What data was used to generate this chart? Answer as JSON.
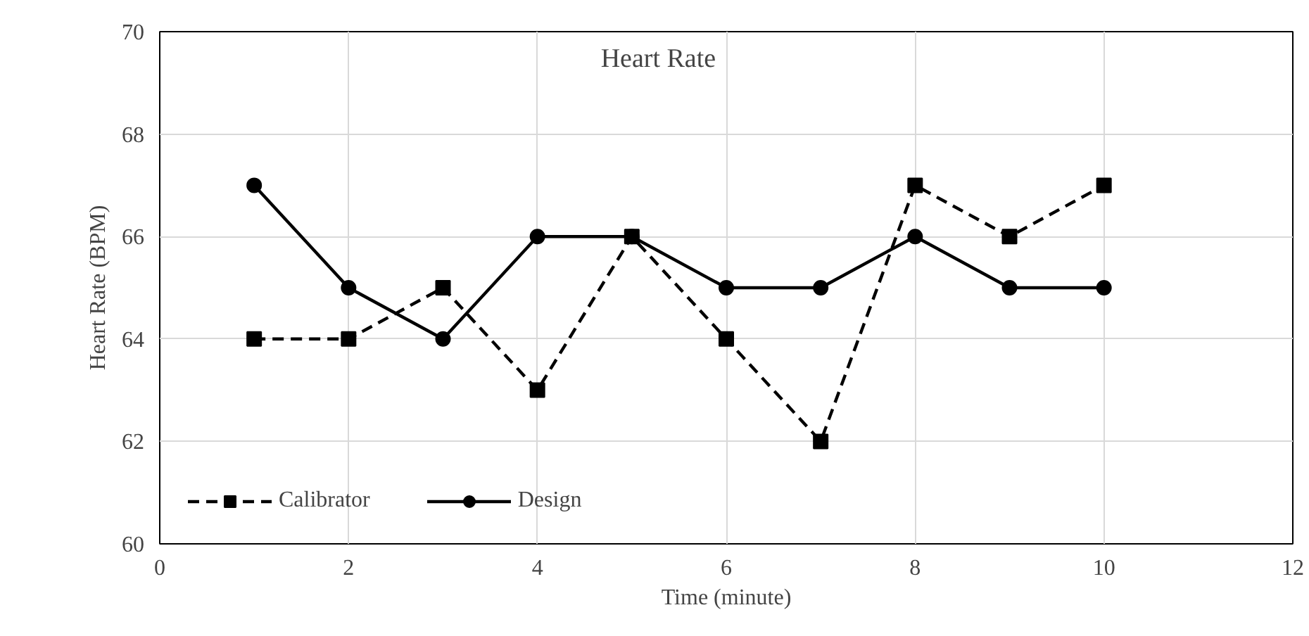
{
  "chart_data": {
    "type": "line",
    "title": "Heart Rate",
    "xlabel": "Time (minute)",
    "ylabel": "Heart Rate (BPM)",
    "x": [
      1,
      2,
      3,
      4,
      5,
      6,
      7,
      8,
      9,
      10
    ],
    "series": [
      {
        "name": "Calibrator",
        "color": "#000000",
        "marker": "square",
        "line_style": "dashed",
        "values": [
          64,
          64,
          65,
          63,
          66,
          64,
          62,
          67,
          66,
          67
        ]
      },
      {
        "name": "Design",
        "color": "#000000",
        "marker": "circle",
        "line_style": "solid",
        "values": [
          67,
          65,
          64,
          66,
          66,
          65,
          65,
          66,
          65,
          65
        ]
      }
    ],
    "xlim": [
      0,
      12
    ],
    "xticks": [
      0,
      2,
      4,
      6,
      8,
      10,
      12
    ],
    "ylim": [
      60,
      70
    ],
    "yticks": [
      60,
      62,
      64,
      66,
      68,
      70
    ],
    "grid": true,
    "legend": "bottom left"
  }
}
